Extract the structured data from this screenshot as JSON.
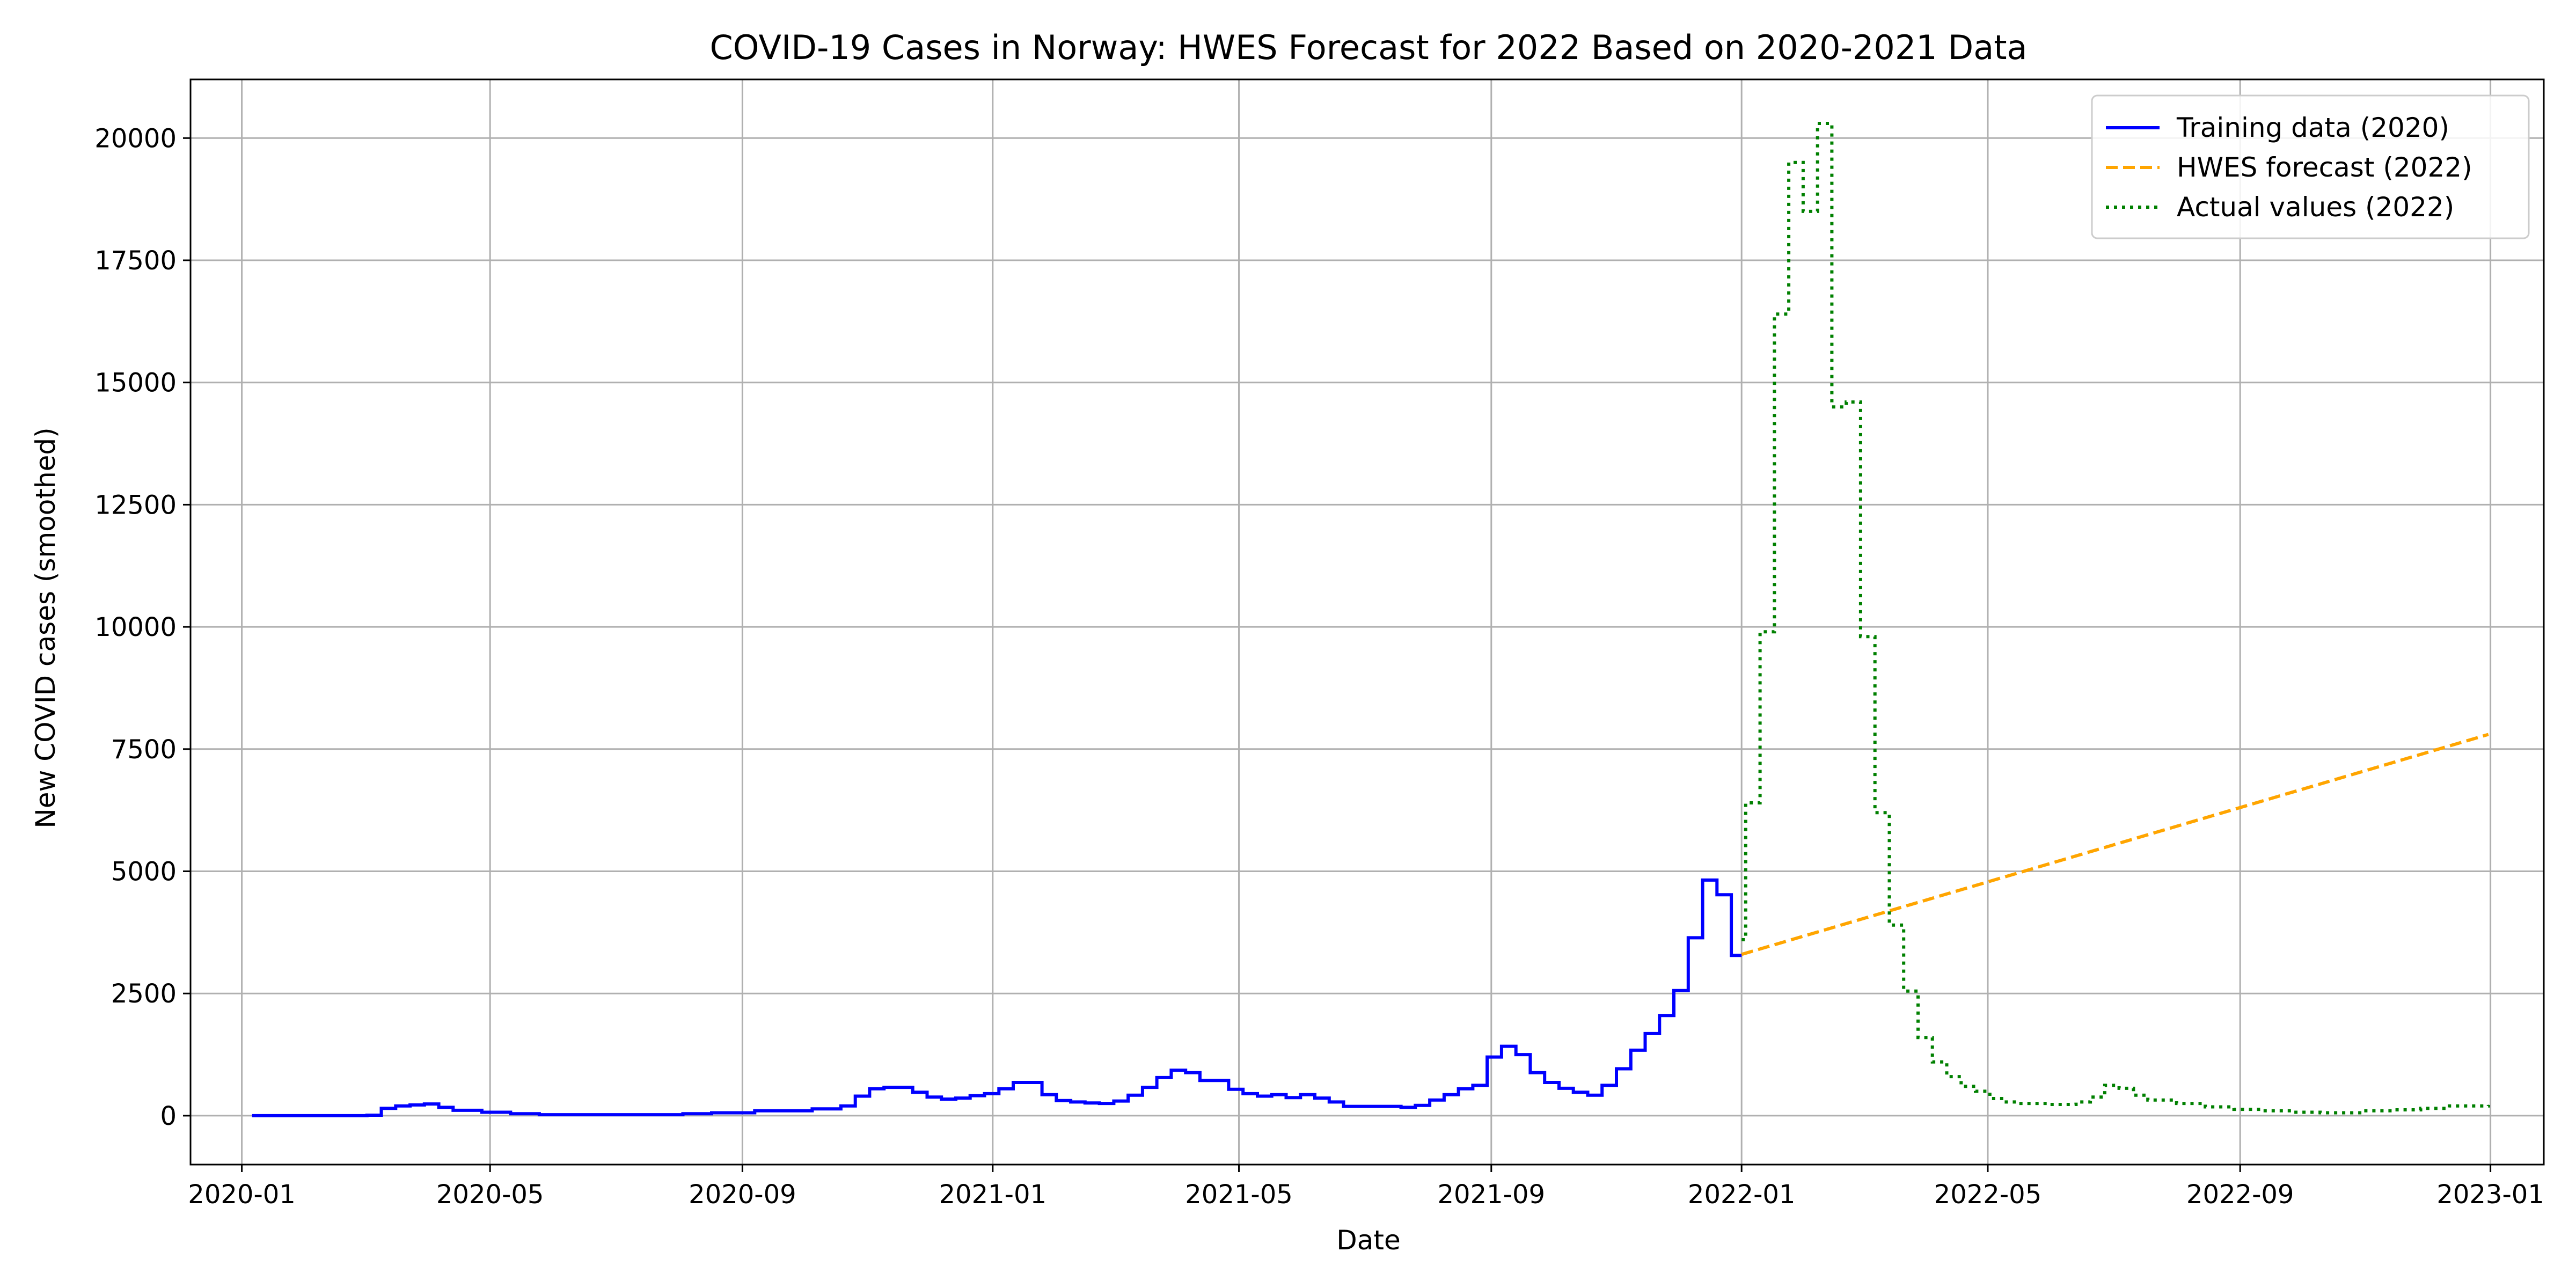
{
  "chart_data": {
    "type": "line",
    "title": "COVID-19 Cases in Norway: HWES Forecast for 2022 Based on 2020-2021 Data",
    "xlabel": "Date",
    "ylabel": "New COVID cases (smoothed)",
    "xlim": [
      "2019-12-07",
      "2023-01-27"
    ],
    "ylim": [
      -1000,
      21200
    ],
    "grid": true,
    "legend_position": "top-right",
    "x_ticks": [
      "2020-01",
      "2020-05",
      "2020-09",
      "2021-01",
      "2021-05",
      "2021-09",
      "2022-01",
      "2022-05",
      "2022-09",
      "2023-01"
    ],
    "x_tick_dates": [
      "2020-01-01",
      "2020-05-01",
      "2020-09-01",
      "2021-01-01",
      "2021-05-01",
      "2021-09-01",
      "2022-01-01",
      "2022-05-01",
      "2022-09-01",
      "2023-01-01"
    ],
    "y_ticks": [
      0,
      2500,
      5000,
      7500,
      10000,
      12500,
      15000,
      17500,
      20000
    ],
    "series": [
      {
        "name": "Training data (2020)",
        "color": "#0000ff",
        "style": "solid",
        "step": true,
        "points": [
          [
            "2020-01-06",
            0
          ],
          [
            "2020-03-02",
            10
          ],
          [
            "2020-03-09",
            150
          ],
          [
            "2020-03-16",
            200
          ],
          [
            "2020-03-23",
            220
          ],
          [
            "2020-03-30",
            240
          ],
          [
            "2020-04-06",
            170
          ],
          [
            "2020-04-13",
            110
          ],
          [
            "2020-04-27",
            70
          ],
          [
            "2020-05-11",
            40
          ],
          [
            "2020-05-25",
            20
          ],
          [
            "2020-07-20",
            20
          ],
          [
            "2020-08-03",
            40
          ],
          [
            "2020-08-17",
            60
          ],
          [
            "2020-09-07",
            100
          ],
          [
            "2020-10-05",
            140
          ],
          [
            "2020-10-19",
            200
          ],
          [
            "2020-10-26",
            400
          ],
          [
            "2020-11-02",
            550
          ],
          [
            "2020-11-09",
            580
          ],
          [
            "2020-11-23",
            480
          ],
          [
            "2020-11-30",
            380
          ],
          [
            "2020-12-07",
            340
          ],
          [
            "2020-12-14",
            360
          ],
          [
            "2020-12-21",
            410
          ],
          [
            "2020-12-28",
            450
          ],
          [
            "2021-01-04",
            550
          ],
          [
            "2021-01-11",
            680
          ],
          [
            "2021-01-25",
            430
          ],
          [
            "2021-02-01",
            310
          ],
          [
            "2021-02-08",
            280
          ],
          [
            "2021-02-15",
            260
          ],
          [
            "2021-02-22",
            250
          ],
          [
            "2021-03-01",
            300
          ],
          [
            "2021-03-08",
            420
          ],
          [
            "2021-03-15",
            580
          ],
          [
            "2021-03-22",
            780
          ],
          [
            "2021-03-29",
            930
          ],
          [
            "2021-04-05",
            880
          ],
          [
            "2021-04-12",
            720
          ],
          [
            "2021-04-26",
            540
          ],
          [
            "2021-05-03",
            450
          ],
          [
            "2021-05-10",
            400
          ],
          [
            "2021-05-17",
            430
          ],
          [
            "2021-05-24",
            370
          ],
          [
            "2021-05-31",
            430
          ],
          [
            "2021-06-07",
            360
          ],
          [
            "2021-06-14",
            280
          ],
          [
            "2021-06-21",
            190
          ],
          [
            "2021-07-19",
            170
          ],
          [
            "2021-07-26",
            210
          ],
          [
            "2021-08-02",
            320
          ],
          [
            "2021-08-09",
            430
          ],
          [
            "2021-08-16",
            550
          ],
          [
            "2021-08-23",
            620
          ],
          [
            "2021-08-30",
            1200
          ],
          [
            "2021-09-06",
            1420
          ],
          [
            "2021-09-13",
            1250
          ],
          [
            "2021-09-20",
            880
          ],
          [
            "2021-09-27",
            680
          ],
          [
            "2021-10-04",
            560
          ],
          [
            "2021-10-11",
            480
          ],
          [
            "2021-10-18",
            420
          ],
          [
            "2021-10-25",
            620
          ],
          [
            "2021-11-01",
            960
          ],
          [
            "2021-11-08",
            1340
          ],
          [
            "2021-11-15",
            1680
          ],
          [
            "2021-11-22",
            2050
          ],
          [
            "2021-11-29",
            2560
          ],
          [
            "2021-12-06",
            3640
          ],
          [
            "2021-12-13",
            4820
          ],
          [
            "2021-12-20",
            4520
          ],
          [
            "2021-12-27",
            3280
          ],
          [
            "2022-01-01",
            3280
          ]
        ]
      },
      {
        "name": "HWES forecast (2022)",
        "color": "#ffa500",
        "style": "dashed",
        "step": false,
        "points": [
          [
            "2022-01-01",
            3300
          ],
          [
            "2022-12-31",
            7800
          ]
        ]
      },
      {
        "name": "Actual values (2022)",
        "color": "#008000",
        "style": "dotted",
        "step": true,
        "points": [
          [
            "2022-01-01",
            3600
          ],
          [
            "2022-01-03",
            6400
          ],
          [
            "2022-01-10",
            9900
          ],
          [
            "2022-01-17",
            16400
          ],
          [
            "2022-01-24",
            19500
          ],
          [
            "2022-01-31",
            18500
          ],
          [
            "2022-02-07",
            20300
          ],
          [
            "2022-02-14",
            14500
          ],
          [
            "2022-02-21",
            14600
          ],
          [
            "2022-02-28",
            9800
          ],
          [
            "2022-03-07",
            6200
          ],
          [
            "2022-03-14",
            3900
          ],
          [
            "2022-03-21",
            2550
          ],
          [
            "2022-03-28",
            1600
          ],
          [
            "2022-04-04",
            1100
          ],
          [
            "2022-04-11",
            800
          ],
          [
            "2022-04-18",
            600
          ],
          [
            "2022-04-25",
            500
          ],
          [
            "2022-05-02",
            350
          ],
          [
            "2022-05-09",
            280
          ],
          [
            "2022-05-16",
            250
          ],
          [
            "2022-05-30",
            230
          ],
          [
            "2022-06-13",
            280
          ],
          [
            "2022-06-20",
            380
          ],
          [
            "2022-06-27",
            620
          ],
          [
            "2022-07-04",
            560
          ],
          [
            "2022-07-11",
            420
          ],
          [
            "2022-07-18",
            320
          ],
          [
            "2022-08-01",
            250
          ],
          [
            "2022-08-15",
            180
          ],
          [
            "2022-08-29",
            130
          ],
          [
            "2022-09-12",
            100
          ],
          [
            "2022-09-26",
            70
          ],
          [
            "2022-10-10",
            60
          ],
          [
            "2022-10-31",
            100
          ],
          [
            "2022-11-14",
            120
          ],
          [
            "2022-11-28",
            150
          ],
          [
            "2022-12-12",
            200
          ],
          [
            "2022-12-31",
            220
          ]
        ]
      }
    ]
  }
}
